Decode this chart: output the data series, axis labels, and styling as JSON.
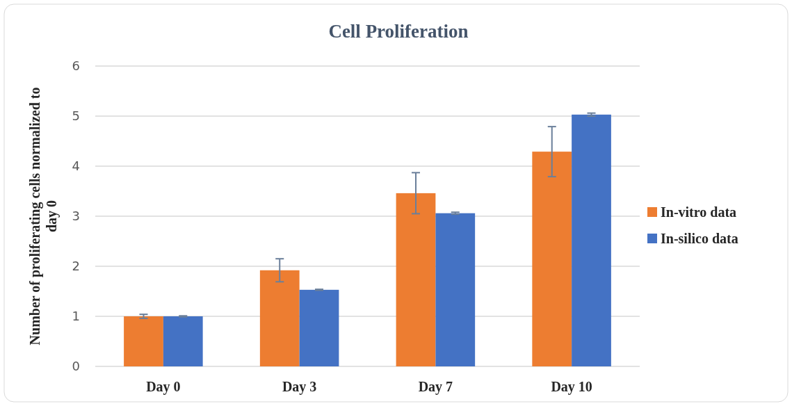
{
  "chart_data": {
    "type": "bar",
    "title": "Cell Proliferation",
    "ylabel": "Number of proliferating cells normalized to day 0",
    "categories": [
      "Day 0",
      "Day 3",
      "Day 7",
      "Day 10"
    ],
    "series": [
      {
        "name": "In-vitro data",
        "color": "#ed7d31",
        "values": [
          1.0,
          1.92,
          3.46,
          4.29
        ],
        "errors": [
          0.04,
          0.23,
          0.41,
          0.5
        ]
      },
      {
        "name": "In-silico data",
        "color": "#4472c4",
        "values": [
          1.0,
          1.53,
          3.06,
          5.03
        ],
        "errors": [
          0.01,
          0.01,
          0.02,
          0.03
        ]
      }
    ],
    "ylim": [
      0,
      6
    ],
    "yticks": [
      0,
      1,
      2,
      3,
      4,
      5,
      6
    ],
    "grid": "y",
    "legend": "right"
  }
}
